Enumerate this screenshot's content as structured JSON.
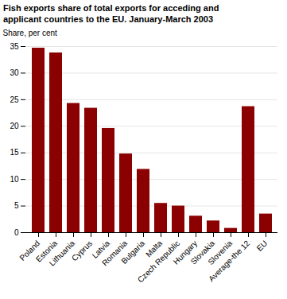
{
  "chart_data": {
    "type": "bar",
    "title": "Fish exports share of total exports for acceding and\napplicant countries to the EU. January-March 2003",
    "ylabel": "Share, per cent",
    "categories": [
      "Poland",
      "Estonia",
      "Lithuania",
      "Cyprus",
      "Latvia",
      "Romania",
      "Bulgaria",
      "Malta",
      "Czech Republic",
      "Hungary",
      "Slovakia",
      "Slovenia",
      "Average-the 12",
      "EU"
    ],
    "values": [
      34.7,
      33.8,
      24.3,
      23.4,
      19.6,
      14.8,
      11.9,
      5.5,
      5.0,
      3.1,
      2.2,
      0.8,
      23.7,
      3.5
    ],
    "color": "#8B0000",
    "ylim": [
      0,
      35
    ],
    "yticks": [
      0,
      5,
      10,
      15,
      20,
      25,
      30,
      35
    ],
    "grid": true
  }
}
